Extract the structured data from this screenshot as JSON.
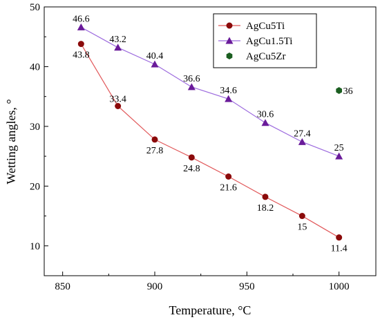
{
  "chart_data": {
    "type": "line",
    "title": "",
    "xlabel": "Temperature, °C",
    "ylabel": "Wetting angles, °",
    "xlim": [
      840,
      1020
    ],
    "ylim": [
      5,
      50
    ],
    "xticks": [
      850,
      900,
      950,
      1000
    ],
    "yticks": [
      10,
      20,
      30,
      40,
      50
    ],
    "grid": false,
    "legend_position": "top-right",
    "series": [
      {
        "name": "AgCu5Ti",
        "marker": "circle",
        "color": "#8B0A0A",
        "line_color": "#E15759",
        "x": [
          860,
          880,
          900,
          920,
          940,
          960,
          980,
          1000
        ],
        "y": [
          43.8,
          33.4,
          27.8,
          24.8,
          21.6,
          18.2,
          15,
          11.4
        ],
        "labels": [
          "43.8",
          "33.4",
          "27.8",
          "24.8",
          "21.6",
          "18.2",
          "15",
          "11.4"
        ]
      },
      {
        "name": "AgCu1.5Ti",
        "marker": "triangle",
        "color": "#6A1B9A",
        "line_color": "#9C6ADE",
        "x": [
          860,
          880,
          900,
          920,
          940,
          960,
          980,
          1000
        ],
        "y": [
          46.6,
          43.2,
          40.4,
          36.6,
          34.6,
          30.6,
          27.4,
          25
        ],
        "labels": [
          "46.6",
          "43.2",
          "40.4",
          "36.6",
          "34.6",
          "30.6",
          "27.4",
          "25"
        ]
      },
      {
        "name": "AgCu5Zr",
        "marker": "hexagon",
        "color": "#1B5E20",
        "line_color": "",
        "x": [
          1000
        ],
        "y": [
          36
        ],
        "labels": [
          "36"
        ]
      }
    ]
  }
}
